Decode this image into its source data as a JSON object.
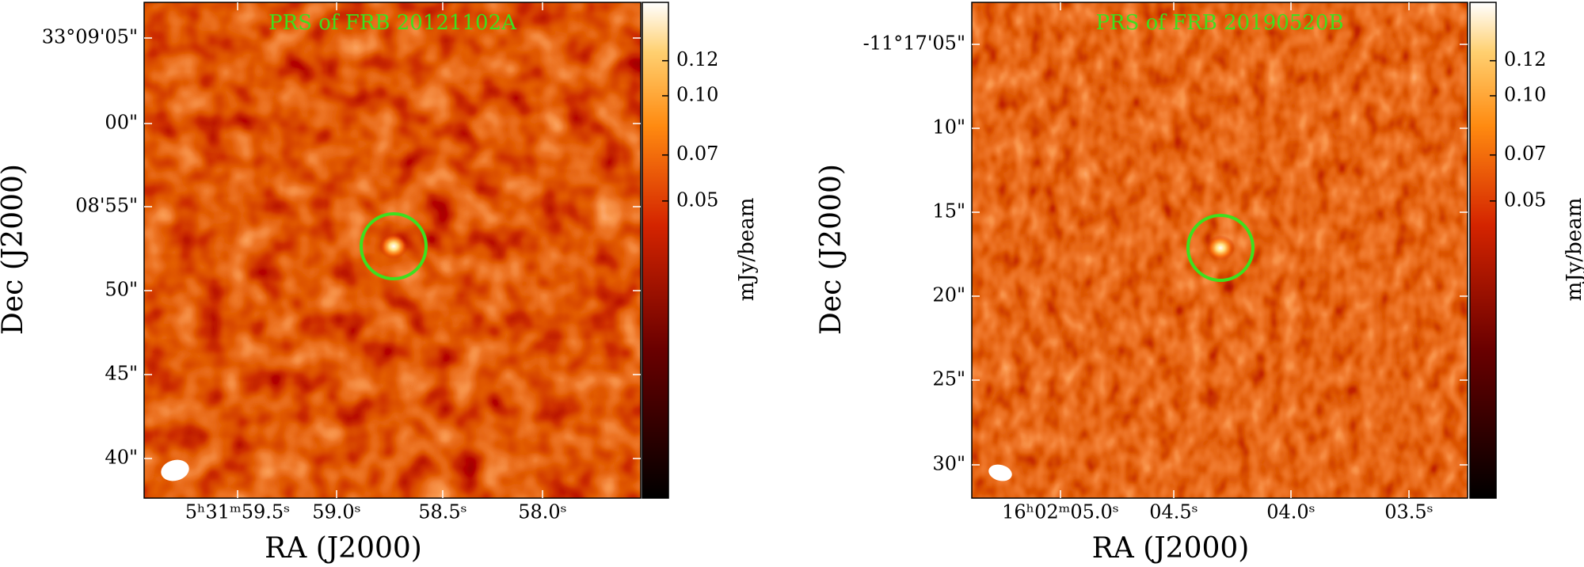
{
  "panels": [
    {
      "title": "PRS of FRB 20121102A",
      "xlabel": "RA (J2000)",
      "ylabel": "Dec (J2000)",
      "xticks": [
        "5ʰ31ᵐ59.5ˢ",
        "59.0ˢ",
        "58.5ˢ",
        "58.0ˢ"
      ],
      "yticks": [
        "33°09'05\"",
        "00\"",
        "08'55\"",
        "50\"",
        "45\"",
        "40\""
      ],
      "colorbar": {
        "label": "mJy/beam",
        "clim": [
          -0.01,
          0.157
        ],
        "stretch": "sqrt",
        "ticks": [
          0.12,
          {
            "value": 0.1,
            "label": "0.10"
          },
          0.07,
          0.05
        ]
      }
    },
    {
      "title": "PRS of FRB 20190520B",
      "xlabel": "RA (J2000)",
      "ylabel": "Dec (J2000)",
      "xticks": [
        "16ʰ02ᵐ05.0ˢ",
        "04.5ˢ",
        "04.0ˢ",
        "03.5ˢ"
      ],
      "yticks": [
        "-11°17'05\"",
        "10\"",
        "15\"",
        "20\"",
        "25\"",
        "30\""
      ],
      "colorbar": {
        "label": "mJy/beam",
        "clim": [
          -0.01,
          0.157
        ],
        "stretch": "sqrt",
        "ticks": [
          0.12,
          {
            "value": 0.1,
            "label": "0.10"
          },
          0.07,
          0.05
        ]
      }
    }
  ]
}
